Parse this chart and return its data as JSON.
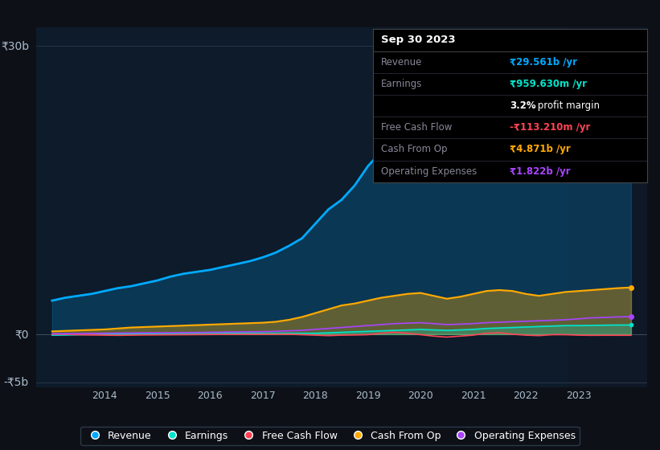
{
  "bg_color": "#0d1117",
  "plot_bg_color": "#0d1b2a",
  "years": [
    2013,
    2013.25,
    2013.5,
    2013.75,
    2014,
    2014.25,
    2014.5,
    2014.75,
    2015,
    2015.25,
    2015.5,
    2015.75,
    2016,
    2016.25,
    2016.5,
    2016.75,
    2017,
    2017.25,
    2017.5,
    2017.75,
    2018,
    2018.25,
    2018.5,
    2018.75,
    2019,
    2019.25,
    2019.5,
    2019.75,
    2020,
    2020.25,
    2020.5,
    2020.75,
    2021,
    2021.25,
    2021.5,
    2021.75,
    2022,
    2022.25,
    2022.5,
    2022.75,
    2023,
    2023.25,
    2023.5,
    2023.75,
    2024
  ],
  "revenue": [
    3.5,
    3.8,
    4.0,
    4.2,
    4.5,
    4.8,
    5.0,
    5.3,
    5.6,
    6.0,
    6.3,
    6.5,
    6.7,
    7.0,
    7.3,
    7.6,
    8.0,
    8.5,
    9.2,
    10.0,
    11.5,
    13.0,
    14.0,
    15.5,
    17.5,
    19.0,
    20.5,
    21.0,
    21.5,
    20.5,
    19.5,
    20.0,
    22.0,
    23.5,
    24.0,
    23.5,
    22.5,
    21.5,
    22.0,
    23.0,
    24.0,
    25.5,
    27.0,
    29.0,
    29.561
  ],
  "earnings": [
    -0.1,
    -0.08,
    -0.05,
    -0.03,
    0.0,
    0.02,
    0.03,
    0.04,
    0.05,
    0.06,
    0.07,
    0.07,
    0.07,
    0.08,
    0.09,
    0.1,
    0.1,
    0.1,
    0.1,
    0.1,
    0.1,
    0.15,
    0.2,
    0.25,
    0.3,
    0.35,
    0.4,
    0.45,
    0.5,
    0.45,
    0.4,
    0.45,
    0.5,
    0.6,
    0.65,
    0.7,
    0.75,
    0.8,
    0.85,
    0.9,
    0.9,
    0.92,
    0.94,
    0.96,
    0.9596
  ],
  "free_cash_flow": [
    0.0,
    0.0,
    -0.05,
    -0.08,
    -0.1,
    -0.12,
    -0.1,
    -0.08,
    -0.07,
    -0.06,
    -0.05,
    -0.04,
    -0.03,
    -0.02,
    -0.01,
    0.0,
    0.0,
    0.0,
    0.0,
    -0.05,
    -0.1,
    -0.15,
    -0.1,
    -0.08,
    -0.05,
    0.1,
    0.2,
    0.1,
    -0.05,
    -0.2,
    -0.3,
    -0.2,
    -0.1,
    0.1,
    0.15,
    0.0,
    -0.1,
    -0.15,
    -0.05,
    -0.05,
    -0.1,
    -0.12,
    -0.11,
    -0.113,
    -0.1132
  ],
  "cash_from_op": [
    0.3,
    0.35,
    0.4,
    0.45,
    0.5,
    0.6,
    0.7,
    0.75,
    0.8,
    0.85,
    0.9,
    0.95,
    1.0,
    1.05,
    1.1,
    1.15,
    1.2,
    1.3,
    1.5,
    1.8,
    2.2,
    2.6,
    3.0,
    3.2,
    3.5,
    3.8,
    4.0,
    4.2,
    4.3,
    4.0,
    3.7,
    3.9,
    4.2,
    4.5,
    4.6,
    4.5,
    4.2,
    4.0,
    4.2,
    4.4,
    4.5,
    4.6,
    4.7,
    4.8,
    4.871
  ],
  "operating_expenses": [
    0.05,
    0.06,
    0.07,
    0.08,
    0.1,
    0.12,
    0.13,
    0.14,
    0.15,
    0.16,
    0.17,
    0.18,
    0.2,
    0.22,
    0.24,
    0.25,
    0.27,
    0.3,
    0.35,
    0.4,
    0.5,
    0.6,
    0.7,
    0.8,
    0.9,
    1.0,
    1.1,
    1.15,
    1.2,
    1.1,
    1.0,
    1.05,
    1.1,
    1.2,
    1.25,
    1.3,
    1.35,
    1.4,
    1.45,
    1.5,
    1.6,
    1.7,
    1.75,
    1.8,
    1.822
  ],
  "revenue_color": "#00aaff",
  "earnings_color": "#00e5cc",
  "free_cash_flow_color": "#ff4455",
  "cash_from_op_color": "#ffaa00",
  "operating_expenses_color": "#aa44ff",
  "ylabel_30b": "₹30b",
  "ylabel_0": "₹0",
  "ylabel_neg5b": "-₹5b",
  "xlim": [
    2012.7,
    2024.3
  ],
  "ylim": [
    -5.5,
    32
  ],
  "tooltip_box": {
    "title": "Sep 30 2023",
    "rows": [
      {
        "label": "Revenue",
        "value": "₹29.561b /yr",
        "value_color": "#00aaff",
        "bold_prefix": ""
      },
      {
        "label": "Earnings",
        "value": "₹959.630m /yr",
        "value_color": "#00e5cc",
        "bold_prefix": ""
      },
      {
        "label": "",
        "value": " profit margin",
        "value_color": "#ffffff",
        "bold_prefix": "3.2%"
      },
      {
        "label": "Free Cash Flow",
        "value": "-₹113.210m /yr",
        "value_color": "#ff4455",
        "bold_prefix": ""
      },
      {
        "label": "Cash From Op",
        "value": "₹4.871b /yr",
        "value_color": "#ffaa00",
        "bold_prefix": ""
      },
      {
        "label": "Operating Expenses",
        "value": "₹1.822b /yr",
        "value_color": "#aa44ff",
        "bold_prefix": ""
      }
    ]
  },
  "legend_items": [
    {
      "label": "Revenue",
      "color": "#00aaff"
    },
    {
      "label": "Earnings",
      "color": "#00e5cc"
    },
    {
      "label": "Free Cash Flow",
      "color": "#ff4455"
    },
    {
      "label": "Cash From Op",
      "color": "#ffaa00"
    },
    {
      "label": "Operating Expenses",
      "color": "#aa44ff"
    }
  ],
  "x_ticks": [
    2013,
    2014,
    2015,
    2016,
    2017,
    2018,
    2019,
    2020,
    2021,
    2022,
    2023
  ],
  "x_tick_labels": [
    "",
    "2014",
    "2015",
    "2016",
    "2017",
    "2018",
    "2019",
    "2020",
    "2021",
    "2022",
    "2023"
  ],
  "shaded_start": 2022.8,
  "shaded_end": 2024.3,
  "hline_30_color": "#334455",
  "hline_0_color": "#445566",
  "hline_n5_color": "#334455",
  "label_color": "#aabbcc",
  "divider_color": "#444444",
  "row_divider_color": "#333344"
}
